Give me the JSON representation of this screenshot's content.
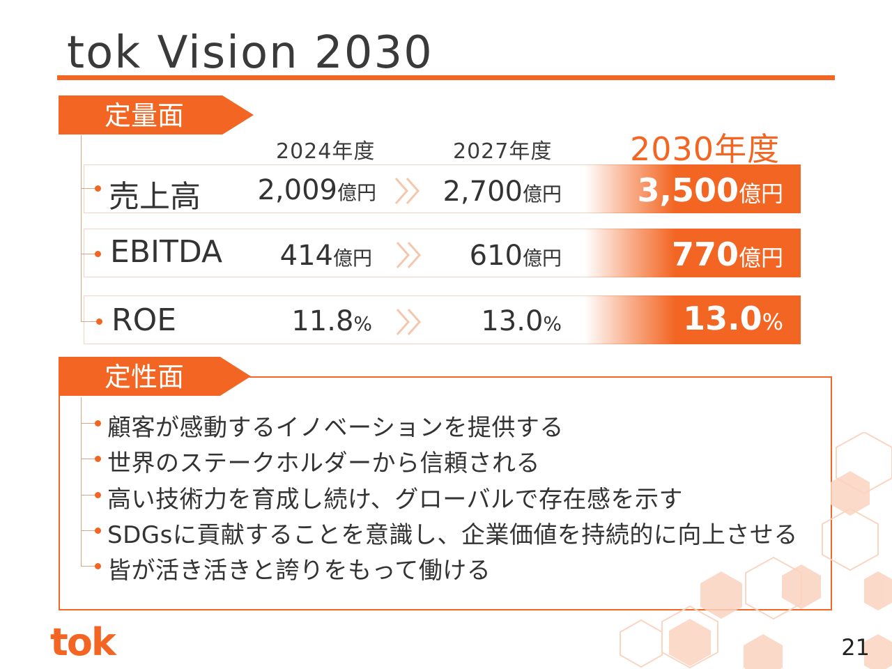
{
  "title": "tok Vision 2030",
  "colors": {
    "accent": "#f26522"
  },
  "quantitative": {
    "heading": "定量面",
    "years": [
      "2024年度",
      "2027年度",
      "2030年度"
    ],
    "rows": [
      {
        "metric": "売上高",
        "v2024": "2,009",
        "u2024": "億円",
        "v2027": "2,700",
        "u2027": "億円",
        "v2030": "3,500",
        "u2030": "億円"
      },
      {
        "metric": "EBITDA",
        "v2024": "414",
        "u2024": "億円",
        "v2027": "610",
        "u2027": "億円",
        "v2030": "770",
        "u2030": "億円"
      },
      {
        "metric": "ROE",
        "v2024": "11.8",
        "u2024": "%",
        "v2027": "13.0",
        "u2027": "%",
        "v2030": "13.0",
        "u2030": "%"
      }
    ]
  },
  "qualitative": {
    "heading": "定性面",
    "items": [
      "顧客が感動するイノベーションを提供する",
      "世界のステークホルダーから信頼される",
      "高い技術力を育成し続け、グローバルで存在感を示す",
      "SDGsに貢献することを意識し、企業価値を持続的に向上させる",
      "皆が活き活きと誇りをもって働ける"
    ]
  },
  "logo": "tok",
  "page_number": "21"
}
